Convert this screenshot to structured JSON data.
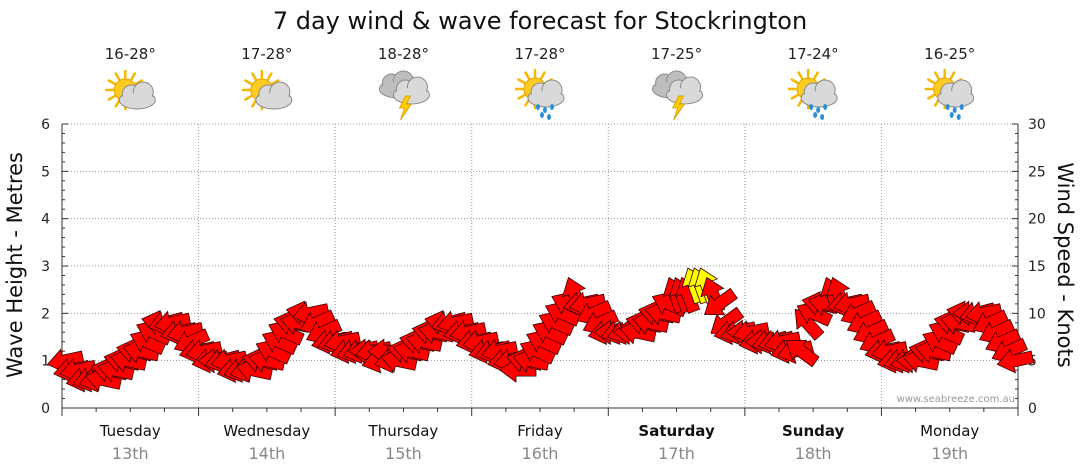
{
  "chart_data": {
    "type": "scatter",
    "title": "7 day wind & wave forecast for Stockrington",
    "ylabel_left": "Wave Height - Metres",
    "ylabel_right": "Wind Speed - Knots",
    "ylim_left": [
      0,
      6
    ],
    "ylim_right": [
      0,
      30
    ],
    "yticks_left": [
      "0",
      "1",
      "2",
      "3",
      "4",
      "5",
      "6"
    ],
    "yticks_right": [
      "0",
      "5",
      "10",
      "15",
      "20",
      "25",
      "30"
    ],
    "grid": true,
    "credit": "www.seabreeze.com.au",
    "days": [
      {
        "name": "Tuesday",
        "date": "13th",
        "temp": "16-28°",
        "icon": "sun-cloud-icon",
        "bold": false
      },
      {
        "name": "Wednesday",
        "date": "14th",
        "temp": "17-28°",
        "icon": "sun-cloud-icon",
        "bold": false
      },
      {
        "name": "Thursday",
        "date": "15th",
        "temp": "18-28°",
        "icon": "storm-cloud-icon",
        "bold": false
      },
      {
        "name": "Friday",
        "date": "16th",
        "temp": "17-28°",
        "icon": "sun-rain-icon",
        "bold": false
      },
      {
        "name": "Saturday",
        "date": "17th",
        "temp": "17-25°",
        "icon": "storm-cloud-icon",
        "bold": true
      },
      {
        "name": "Sunday",
        "date": "18th",
        "temp": "17-24°",
        "icon": "sun-rain-icon",
        "bold": true
      },
      {
        "name": "Monday",
        "date": "19th",
        "temp": "16-25°",
        "icon": "sun-rain-icon",
        "bold": false
      }
    ],
    "wind_series": {
      "name": "Wind",
      "colors": {
        "normal": "#ff0000",
        "strong": "#ffff00"
      },
      "speed_knots": [
        5,
        4,
        4,
        3,
        3,
        3,
        3,
        4,
        4,
        5,
        5,
        6,
        6,
        7,
        8,
        9,
        9,
        9,
        8,
        8,
        7,
        6,
        6,
        5,
        5,
        5,
        5,
        4,
        4,
        4,
        4,
        5,
        5,
        6,
        7,
        8,
        9,
        9,
        10,
        10,
        9,
        8,
        7,
        7,
        7,
        6,
        6,
        6,
        6,
        6,
        5,
        6,
        5,
        5,
        6,
        6,
        7,
        7,
        8,
        8,
        9,
        9,
        9,
        8,
        8,
        7,
        7,
        6,
        6,
        6,
        5,
        5,
        4,
        5,
        5,
        6,
        7,
        8,
        9,
        10,
        11,
        12,
        11,
        11,
        10,
        9,
        8,
        8,
        8,
        8,
        8,
        8,
        9,
        9,
        10,
        10,
        11,
        12,
        12,
        12,
        13,
        13,
        13,
        12,
        11,
        9,
        8,
        8,
        8,
        8,
        7,
        7,
        7,
        7,
        7,
        6,
        6,
        6,
        9,
        10,
        11,
        11,
        12,
        12,
        11,
        11,
        10,
        9,
        8,
        7,
        6,
        6,
        5,
        5,
        5,
        5,
        5,
        6,
        6,
        7,
        8,
        9,
        9,
        10,
        10,
        10,
        10,
        9,
        8,
        7,
        6,
        5
      ]
    }
  }
}
